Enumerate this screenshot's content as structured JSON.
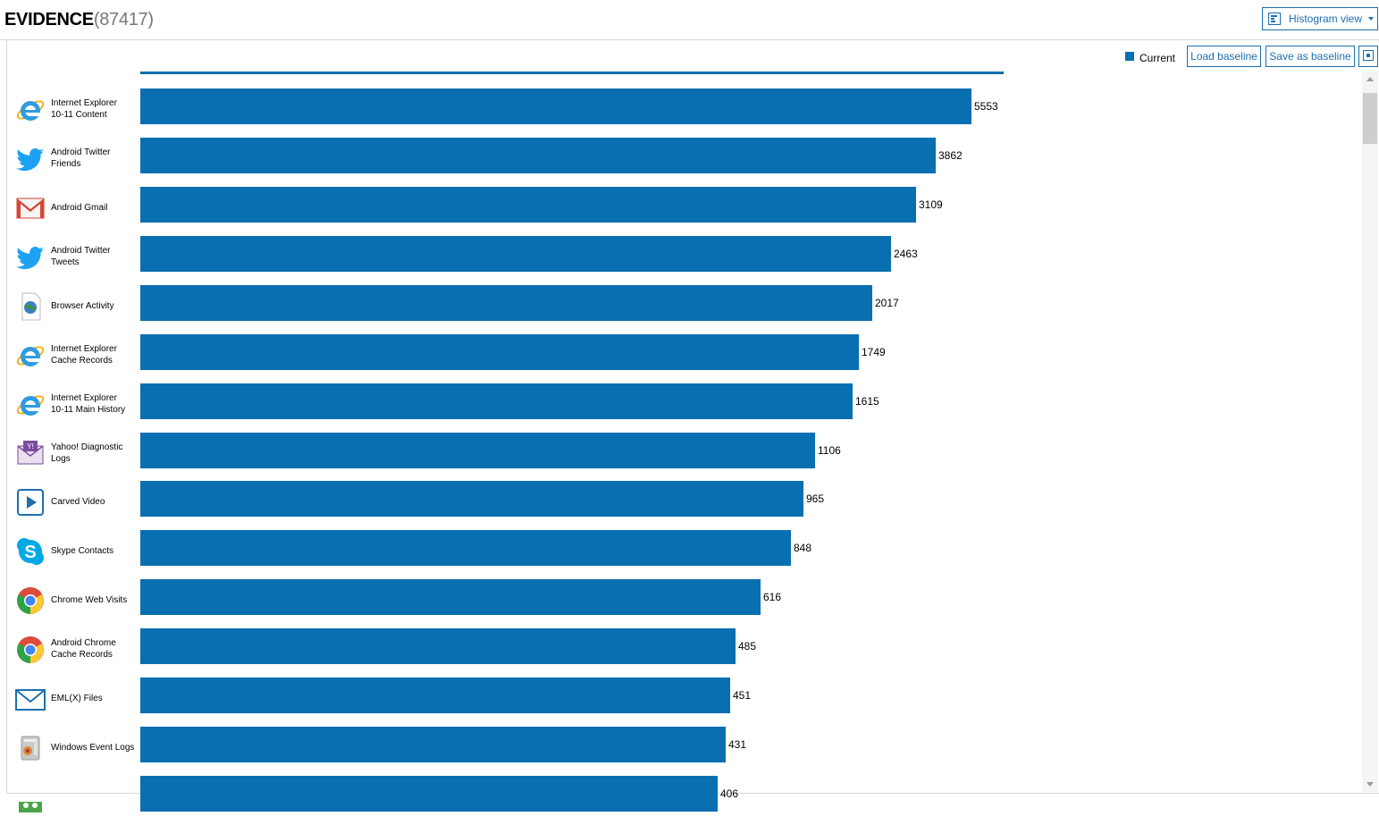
{
  "header": {
    "title": "EVIDENCE",
    "count": "(87417)",
    "view_select": {
      "label": "Histogram view",
      "icon": "histogram-icon"
    }
  },
  "toolbar": {
    "legend_label": "Current",
    "load_baseline": "Load baseline",
    "save_baseline": "Save as baseline",
    "fit_icon": "fit-to-screen-icon"
  },
  "colors": {
    "bar": "#0a6fb0",
    "accent": "#1d6fb0",
    "title_count": "#777777"
  },
  "chart_data": {
    "type": "bar",
    "orientation": "horizontal",
    "categories": [
      "Internet Explorer 10-11 Content",
      "Android Twitter Friends",
      "Android Gmail",
      "Android Twitter Tweets",
      "Browser Activity",
      "Internet Explorer Cache Records",
      "Internet Explorer 10-11 Main History",
      "Yahoo! Diagnostic Logs",
      "Carved Video",
      "Skype Contacts",
      "Chrome Web Visits",
      "Android Chrome Cache Records",
      "EML(X) Files",
      "Windows Event Logs",
      ""
    ],
    "series": [
      {
        "name": "Current",
        "values": [
          5553,
          3862,
          3109,
          2463,
          2017,
          1749,
          1615,
          1106,
          965,
          848,
          616,
          485,
          451,
          431,
          406
        ]
      }
    ],
    "value_labels": [
      "5553",
      "3862",
      "3109",
      "2463",
      "2017",
      "1749",
      "1615",
      "1106",
      "965",
      "848",
      "616",
      "485",
      "451",
      "431",
      "406"
    ],
    "icons": [
      "ie-icon",
      "twitter-icon",
      "gmail-icon",
      "twitter-icon",
      "globe-document-icon",
      "ie-icon",
      "ie-icon",
      "yahoo-mail-icon",
      "video-play-icon",
      "skype-icon",
      "chrome-icon",
      "chrome-icon",
      "email-envelope-icon",
      "event-log-icon",
      "unknown-icon"
    ],
    "label_lines": [
      [
        "Internet Explorer",
        "10-11 Content"
      ],
      [
        "Android Twitter",
        "Friends"
      ],
      [
        "Android Gmail"
      ],
      [
        "Android Twitter",
        "Tweets"
      ],
      [
        "Browser Activity"
      ],
      [
        "Internet Explorer",
        "Cache Records"
      ],
      [
        "Internet Explorer",
        "10-11 Main History"
      ],
      [
        "Yahoo! Diagnostic",
        "Logs"
      ],
      [
        "Carved Video"
      ],
      [
        "Skype Contacts"
      ],
      [
        "Chrome Web Visits"
      ],
      [
        "Android Chrome",
        "Cache Records"
      ],
      [
        "EML(X) Files"
      ],
      [
        "Windows Event Logs"
      ],
      []
    ],
    "legend": "top-right"
  }
}
